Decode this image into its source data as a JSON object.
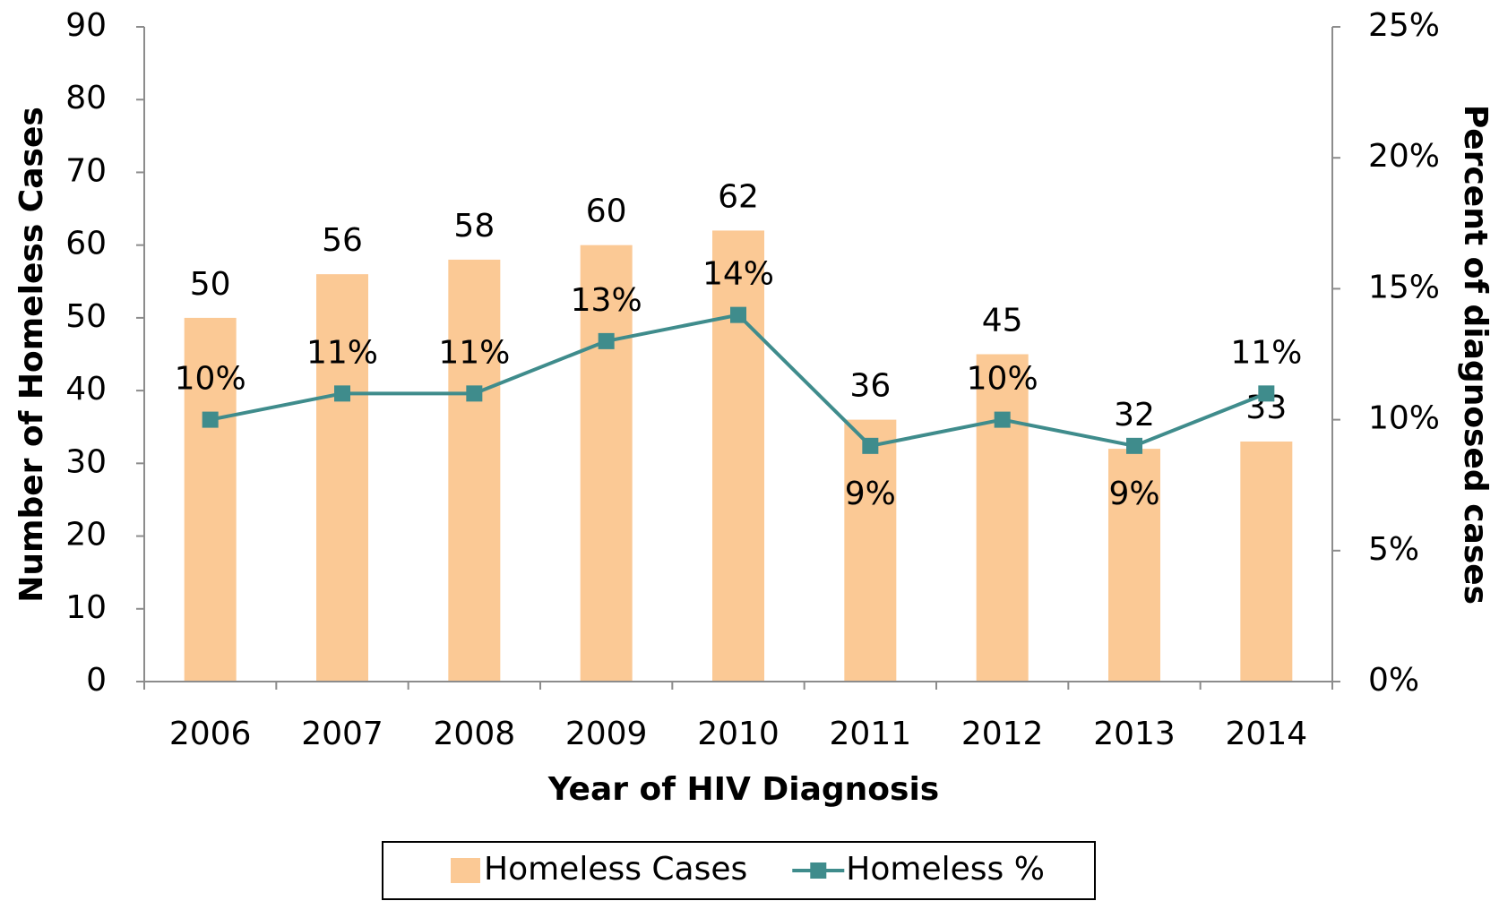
{
  "chart_data": {
    "type": "bar",
    "x_label": "Year of HIV Diagnosis",
    "y_label": "Number of Homeless Cases",
    "y2_label": "Percent of diagnosed cases",
    "categories": [
      "2006",
      "2007",
      "2008",
      "2009",
      "2010",
      "2011",
      "2012",
      "2013",
      "2014"
    ],
    "series": [
      {
        "name": "Homeless Cases",
        "type": "bar",
        "color": "#fbc995",
        "values": [
          50,
          56,
          58,
          60,
          62,
          36,
          45,
          32,
          33
        ]
      },
      {
        "name": "Homeless %",
        "type": "line",
        "axis": "y2",
        "color": "#3f8c8c",
        "values": [
          10,
          11,
          11,
          13,
          14,
          9,
          10,
          9,
          11
        ],
        "value_labels": [
          "10%",
          "11%",
          "11%",
          "13%",
          "14%",
          "9%",
          "10%",
          "9%",
          "11%"
        ]
      }
    ],
    "ylim": [
      0,
      90
    ],
    "yticks": [
      0,
      10,
      20,
      30,
      40,
      50,
      60,
      70,
      80,
      90
    ],
    "y2lim": [
      0,
      25
    ],
    "y2ticks": [
      {
        "value": 0,
        "label": "0%"
      },
      {
        "value": 5,
        "label": "5%"
      },
      {
        "value": 10,
        "label": "10%"
      },
      {
        "value": 15,
        "label": "15%"
      },
      {
        "value": 20,
        "label": "20%"
      },
      {
        "value": 25,
        "label": "25%"
      }
    ],
    "legend": "bottom"
  }
}
